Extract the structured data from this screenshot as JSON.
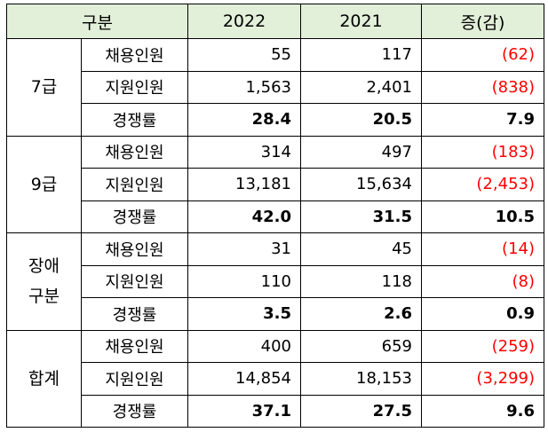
{
  "header": {
    "label": "구분",
    "year_a": "2022",
    "year_b": "2021",
    "change": "증(감)"
  },
  "groups": [
    {
      "name": "7급",
      "rows": [
        {
          "metric": "채용인원",
          "a": "55",
          "b": "117",
          "change": "(62)",
          "negative": true
        },
        {
          "metric": "지원인원",
          "a": "1,563",
          "b": "2,401",
          "change": "(838)",
          "negative": true
        },
        {
          "metric": "경쟁률",
          "a": "28.4",
          "b": "20.5",
          "change": "7.9",
          "negative": false
        }
      ]
    },
    {
      "name": "9급",
      "rows": [
        {
          "metric": "채용인원",
          "a": "314",
          "b": "497",
          "change": "(183)",
          "negative": true
        },
        {
          "metric": "지원인원",
          "a": "13,181",
          "b": "15,634",
          "change": "(2,453)",
          "negative": true
        },
        {
          "metric": "경쟁률",
          "a": "42.0",
          "b": "31.5",
          "change": "10.5",
          "negative": false
        }
      ]
    },
    {
      "name_lines": [
        "장애",
        "구분"
      ],
      "rows": [
        {
          "metric": "채용인원",
          "a": "31",
          "b": "45",
          "change": "(14)",
          "negative": true
        },
        {
          "metric": "지원인원",
          "a": "110",
          "b": "118",
          "change": "(8)",
          "negative": true
        },
        {
          "metric": "경쟁률",
          "a": "3.5",
          "b": "2.6",
          "change": "0.9",
          "negative": false
        }
      ]
    },
    {
      "name": "합계",
      "rows": [
        {
          "metric": "채용인원",
          "a": "400",
          "b": "659",
          "change": "(259)",
          "negative": true
        },
        {
          "metric": "지원인원",
          "a": "14,854",
          "b": "18,153",
          "change": "(3,299)",
          "negative": true
        },
        {
          "metric": "경쟁률",
          "a": "37.1",
          "b": "27.5",
          "change": "9.6",
          "negative": false
        }
      ]
    }
  ],
  "colors": {
    "header_bg": "#e2efd9",
    "negative": "#ff0000",
    "border": "#000000"
  }
}
